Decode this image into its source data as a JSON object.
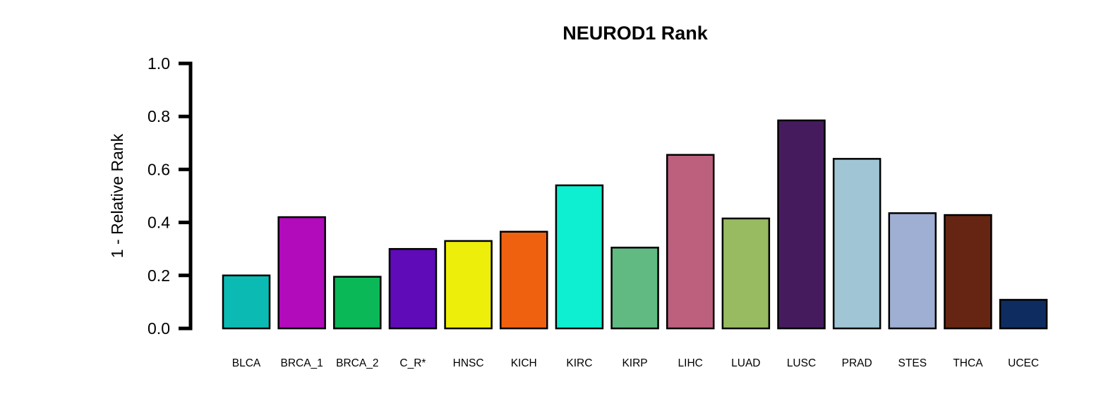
{
  "chart_data": {
    "type": "bar",
    "title": "NEUROD1 Rank",
    "xlabel": "",
    "ylabel": "1 - Relative Rank",
    "ylim": [
      0,
      1.0
    ],
    "yticks": [
      "0.0",
      "0.2",
      "0.4",
      "0.6",
      "0.8",
      "1.0"
    ],
    "categories": [
      "BLCA",
      "BRCA_1",
      "BRCA_2",
      "C_R*",
      "HNSC",
      "KICH",
      "KIRC",
      "KIRP",
      "LIHC",
      "LUAD",
      "LUSC",
      "PRAD",
      "STES",
      "THCA",
      "UCEC"
    ],
    "values": [
      0.2,
      0.42,
      0.195,
      0.3,
      0.33,
      0.365,
      0.54,
      0.305,
      0.655,
      0.415,
      0.785,
      0.64,
      0.435,
      0.428,
      0.108
    ],
    "colors": [
      "#0BBBB3",
      "#B10BBB",
      "#0BB858",
      "#5F0BB8",
      "#EEEE0B",
      "#F0610F",
      "#0EEFD1",
      "#61BA81",
      "#BC607E",
      "#98BB62",
      "#461B5E",
      "#A0C5D4",
      "#9FAED3",
      "#652512",
      "#0E2C60"
    ],
    "grid": false,
    "legend": "none"
  }
}
